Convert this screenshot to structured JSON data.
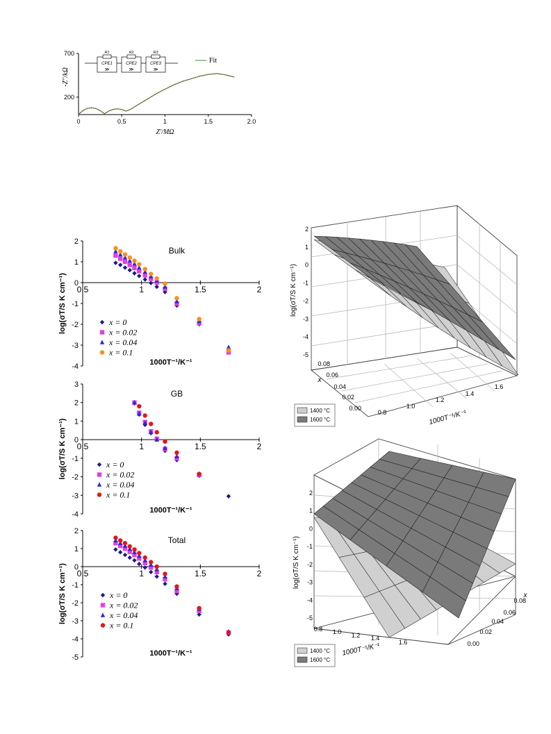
{
  "chart_data": [
    {
      "id": "impedance",
      "type": "line",
      "xlabel": "Z'/MΩ",
      "ylabel": "-Z''/kΩ",
      "xlim": [
        0,
        2.0
      ],
      "ylim": [
        0,
        700
      ],
      "xticks": [
        "0",
        "0.5",
        "1",
        "1.5",
        "2.0"
      ],
      "yticks": [
        "700",
        "200"
      ],
      "legend": "Fit",
      "circuit_labels": [
        "R1",
        "R2",
        "R3",
        "CPE1",
        "CPE2",
        "CPE3"
      ],
      "series": [
        {
          "name": "Fit",
          "color": "#3a8a3a",
          "x": [
            0,
            0.02,
            0.05,
            0.1,
            0.15,
            0.2,
            0.25,
            0.3,
            0.35,
            0.4,
            0.45,
            0.5,
            0.55,
            0.6,
            0.7,
            0.8,
            0.9,
            1.0,
            1.1,
            1.2,
            1.3,
            1.4,
            1.5,
            1.6,
            1.7,
            1.8
          ],
          "y": [
            0,
            20,
            45,
            70,
            78,
            70,
            45,
            10,
            40,
            60,
            65,
            58,
            40,
            60,
            120,
            180,
            240,
            290,
            340,
            380,
            410,
            440,
            460,
            470,
            455,
            430
          ]
        }
      ],
      "grid": false
    },
    {
      "id": "bulk",
      "type": "scatter",
      "title": "Bulk",
      "xlabel": "1000T⁻¹/K⁻¹",
      "ylabel": "log(σT/S K cm⁻¹)",
      "xlim": [
        0.5,
        2
      ],
      "ylim": [
        -4,
        2
      ],
      "xticks": [
        "0.5",
        "1",
        "1.5",
        "2"
      ],
      "yticks": [
        "2",
        "1",
        "0",
        "-1",
        "-2",
        "-3",
        "-4"
      ],
      "legend_position": "left",
      "series": [
        {
          "name": "x = 0",
          "color": "#1a1a8c",
          "marker": "diamond",
          "x": [
            0.78,
            0.82,
            0.86,
            0.9,
            0.94,
            0.98,
            1.03,
            1.08,
            1.13,
            1.2,
            1.3,
            1.49,
            1.74
          ],
          "y": [
            0.95,
            0.85,
            0.72,
            0.6,
            0.45,
            0.32,
            0.15,
            -0.02,
            -0.2,
            -0.45,
            -1.1,
            -2.0,
            -3.2
          ]
        },
        {
          "name": "x = 0.02",
          "color": "#e040e0",
          "marker": "square",
          "x": [
            0.78,
            0.82,
            0.86,
            0.9,
            0.94,
            0.98,
            1.03,
            1.08,
            1.13,
            1.2,
            1.3,
            1.49,
            1.74
          ],
          "y": [
            1.3,
            1.15,
            1.0,
            0.85,
            0.7,
            0.55,
            0.35,
            0.18,
            0.0,
            -0.3,
            -1.0,
            -1.95,
            -3.35
          ]
        },
        {
          "name": "x = 0.04",
          "color": "#2a2ad8",
          "marker": "triangle",
          "x": [
            0.78,
            0.82,
            0.86,
            0.9,
            0.94,
            0.98,
            1.03,
            1.08,
            1.13,
            1.2,
            1.3,
            1.49,
            1.74
          ],
          "y": [
            1.5,
            1.35,
            1.2,
            1.05,
            0.9,
            0.72,
            0.52,
            0.3,
            0.1,
            -0.2,
            -0.9,
            -1.85,
            -3.1
          ]
        },
        {
          "name": "x = 0.1",
          "color": "#ff8c1a",
          "marker": "circle",
          "x": [
            0.78,
            0.82,
            0.86,
            0.9,
            0.94,
            0.98,
            1.03,
            1.08,
            1.13,
            1.2,
            1.3,
            1.49,
            1.74
          ],
          "y": [
            1.65,
            1.5,
            1.35,
            1.2,
            1.05,
            0.88,
            0.65,
            0.42,
            0.2,
            -0.05,
            -0.75,
            -1.75,
            -3.25
          ]
        }
      ]
    },
    {
      "id": "gb",
      "type": "scatter",
      "title": "GB",
      "xlabel": "1000T⁻¹/K⁻¹",
      "ylabel": "log(σT/S K cm⁻¹)",
      "xlim": [
        0.5,
        2
      ],
      "ylim": [
        -4,
        3
      ],
      "xticks": [
        "0.5",
        "1",
        "1.5",
        "2"
      ],
      "yticks": [
        "3",
        "2",
        "1",
        "0",
        "-1",
        "-2",
        "-3",
        "-4"
      ],
      "legend_position": "left",
      "series": [
        {
          "name": "x = 0",
          "color": "#1a1a8c",
          "marker": "diamond",
          "x": [
            0.94,
            0.98,
            1.03,
            1.08,
            1.13,
            1.2,
            1.3,
            1.49,
            1.74
          ],
          "y": [
            1.95,
            1.35,
            0.8,
            0.35,
            0.0,
            -0.6,
            -1.1,
            -1.95,
            -3.05
          ]
        },
        {
          "name": "x = 0.02",
          "color": "#e040e0",
          "marker": "square",
          "x": [
            0.94,
            0.98,
            1.03,
            1.08,
            1.13,
            1.2,
            1.3,
            1.49
          ],
          "y": [
            2.0,
            1.45,
            0.95,
            0.45,
            0.05,
            -0.5,
            -1.0,
            -1.9
          ]
        },
        {
          "name": "x = 0.04",
          "color": "#2a2ad8",
          "marker": "triangle",
          "x": [
            0.94,
            0.98,
            1.03,
            1.08,
            1.13,
            1.2,
            1.3,
            1.49
          ],
          "y": [
            2.0,
            1.4,
            0.9,
            0.4,
            0.0,
            -0.45,
            -0.9,
            -1.85
          ]
        },
        {
          "name": "x = 0.1",
          "color": "#e01818",
          "marker": "circle",
          "x": [
            0.98,
            1.03,
            1.08,
            1.13,
            1.2,
            1.3,
            1.49
          ],
          "y": [
            1.8,
            1.3,
            0.85,
            0.4,
            -0.1,
            -0.7,
            -1.85
          ]
        }
      ]
    },
    {
      "id": "total",
      "type": "scatter",
      "title": "Total",
      "xlabel": "1000T⁻¹/K⁻¹",
      "ylabel": "log(σT/S K cm⁻¹)",
      "xlim": [
        0.5,
        2
      ],
      "ylim": [
        -5,
        2
      ],
      "xticks": [
        "0.5",
        "1",
        "1.5",
        "2"
      ],
      "yticks": [
        "2",
        "1",
        "0",
        "-1",
        "-2",
        "-3",
        "-4",
        "-5"
      ],
      "legend_position": "left",
      "series": [
        {
          "name": "x = 0",
          "color": "#1a1a8c",
          "marker": "diamond",
          "x": [
            0.78,
            0.82,
            0.86,
            0.9,
            0.94,
            0.98,
            1.03,
            1.08,
            1.13,
            1.2,
            1.3,
            1.49,
            1.74
          ],
          "y": [
            0.95,
            0.8,
            0.65,
            0.5,
            0.35,
            0.15,
            -0.05,
            -0.3,
            -0.55,
            -0.95,
            -1.5,
            -2.65,
            -3.75
          ]
        },
        {
          "name": "x = 0.02",
          "color": "#e040e0",
          "marker": "square",
          "x": [
            0.78,
            0.82,
            0.86,
            0.9,
            0.94,
            0.98,
            1.03,
            1.08,
            1.13,
            1.2,
            1.3,
            1.49,
            1.74
          ],
          "y": [
            1.3,
            1.15,
            1.0,
            0.82,
            0.65,
            0.45,
            0.2,
            -0.05,
            -0.3,
            -0.7,
            -1.35,
            -2.45,
            -3.65
          ]
        },
        {
          "name": "x = 0.04",
          "color": "#2a2ad8",
          "marker": "triangle",
          "x": [
            0.78,
            0.82,
            0.86,
            0.9,
            0.94,
            0.98,
            1.03,
            1.08,
            1.13,
            1.2,
            1.3,
            1.49,
            1.74
          ],
          "y": [
            1.45,
            1.3,
            1.15,
            0.98,
            0.8,
            0.6,
            0.35,
            0.1,
            -0.15,
            -0.55,
            -1.2,
            -2.35,
            -3.6
          ]
        },
        {
          "name": "x = 0.1",
          "color": "#e01818",
          "marker": "circle",
          "x": [
            0.78,
            0.82,
            0.86,
            0.9,
            0.94,
            0.98,
            1.03,
            1.08,
            1.13,
            1.2,
            1.3,
            1.49,
            1.74
          ],
          "y": [
            1.6,
            1.45,
            1.3,
            1.12,
            0.95,
            0.75,
            0.5,
            0.25,
            0.0,
            -0.4,
            -1.1,
            -2.3,
            -3.65
          ]
        }
      ]
    },
    {
      "id": "surface-top",
      "type": "surface",
      "xlabel": "1000T⁻¹/K⁻¹",
      "ylabel": "x",
      "zlabel": "log(σT/S K cm⁻¹)",
      "zlim": [
        -5,
        2
      ],
      "zticks": [
        "2",
        "1",
        "0",
        "-1",
        "-2",
        "-3",
        "-4",
        "-5"
      ],
      "xticks": [
        "0.8",
        "1.0",
        "1.2",
        "1.4",
        "1.6"
      ],
      "yticks": [
        "0.00",
        "0.02",
        "0.04",
        "0.06",
        "0.08"
      ],
      "legend_position": "bottom-left",
      "series": [
        {
          "name": "1400 °C",
          "color": "#d0d0d0"
        },
        {
          "name": "1600 °C",
          "color": "#7a7a7a"
        }
      ]
    },
    {
      "id": "surface-bottom",
      "type": "surface",
      "xlabel": "1000T⁻¹/K⁻¹",
      "ylabel": "x",
      "zlabel": "log(σT/S K cm⁻¹)",
      "zlim": [
        -5,
        2
      ],
      "zticks": [
        "2",
        "1",
        "0",
        "-1",
        "-2",
        "-3",
        "-4",
        "-5"
      ],
      "xticks": [
        "0.8",
        "1.0",
        "1.2",
        "1.4",
        "1.6"
      ],
      "yticks": [
        "0.00",
        "0.02",
        "0.04",
        "0.06",
        "0.08"
      ],
      "legend_position": "bottom-left",
      "series": [
        {
          "name": "1400 °C",
          "color": "#d0d0d0"
        },
        {
          "name": "1600 °C",
          "color": "#7a7a7a"
        }
      ]
    }
  ]
}
